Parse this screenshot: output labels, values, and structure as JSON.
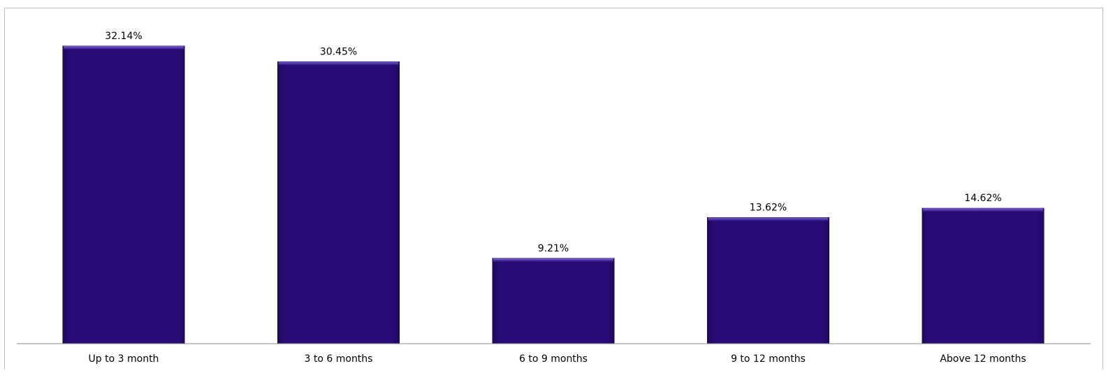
{
  "chart_data": {
    "type": "bar",
    "categories": [
      "Up to 3 month",
      "3 to 6 months",
      "6 to 9 months",
      "9 to 12 months",
      "Above 12 months"
    ],
    "values": [
      32.14,
      30.45,
      9.21,
      13.62,
      14.62
    ],
    "value_labels": [
      "32.14%",
      "30.45%",
      "9.21%",
      "13.62%",
      "14.62%"
    ],
    "title": "",
    "xlabel": "",
    "ylabel": "",
    "ylim": [
      0,
      32.14
    ],
    "grid": false,
    "legend": "none",
    "colors": {
      "bar_fill": "#290b75",
      "bar_top": "#5a3cc0",
      "bar_edge": "#1a0650",
      "axis": "#8c8c8c"
    }
  }
}
